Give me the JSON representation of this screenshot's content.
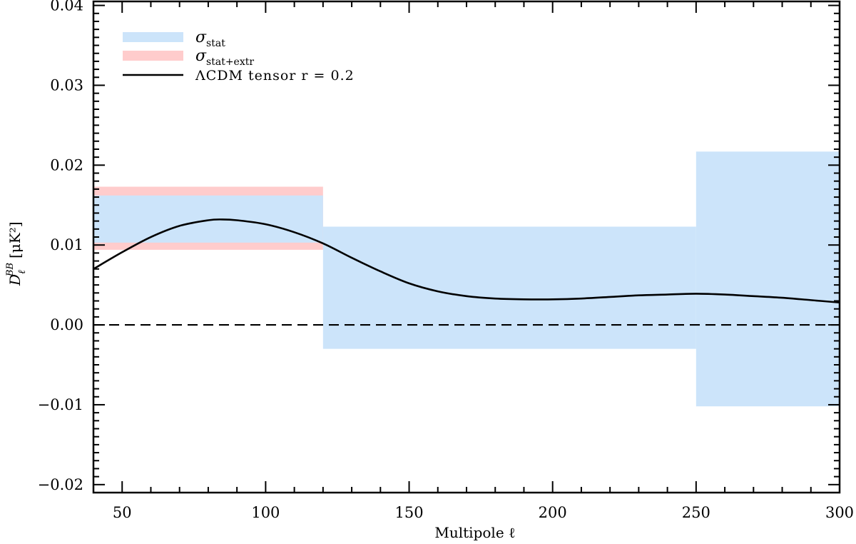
{
  "chart_data": {
    "type": "area",
    "xlabel": "Multipole ℓ",
    "ylabel": "D_ℓ^BB [μK²]",
    "xlim": [
      40,
      300
    ],
    "ylim": [
      -0.021,
      0.0405
    ],
    "x_ticks": [
      50,
      100,
      150,
      200,
      250,
      300
    ],
    "x_tick_labels": [
      "50",
      "100",
      "150",
      "200",
      "250",
      "300"
    ],
    "y_ticks": [
      -0.02,
      -0.01,
      0.0,
      0.01,
      0.02,
      0.03,
      0.04
    ],
    "y_tick_labels": [
      "−0.02",
      "−0.01",
      "0.00",
      "0.01",
      "0.02",
      "0.03",
      "0.04"
    ],
    "legend_position": "top-left",
    "series": [
      {
        "name": "σ_stat+extr",
        "kind": "band",
        "color": "#ffcccc",
        "bins": [
          {
            "x0": 40,
            "x1": 120,
            "low": 0.0094,
            "high": 0.0173
          }
        ]
      },
      {
        "name": "σ_stat",
        "kind": "band",
        "color": "#cce4fa",
        "bins": [
          {
            "x0": 40,
            "x1": 120,
            "low": 0.0103,
            "high": 0.0162
          },
          {
            "x0": 120,
            "x1": 250,
            "low": -0.003,
            "high": 0.0123
          },
          {
            "x0": 250,
            "x1": 300,
            "low": -0.0102,
            "high": 0.0217
          }
        ]
      },
      {
        "name": "ΛCDM tensor r = 0.2",
        "kind": "line",
        "color": "#000000",
        "x": [
          40,
          50,
          60,
          70,
          80,
          85,
          90,
          100,
          110,
          120,
          130,
          140,
          150,
          160,
          170,
          180,
          190,
          200,
          210,
          220,
          230,
          240,
          250,
          260,
          270,
          280,
          290,
          300
        ],
        "y": [
          0.007,
          0.0091,
          0.011,
          0.0124,
          0.0131,
          0.0132,
          0.0131,
          0.0126,
          0.0116,
          0.0102,
          0.0084,
          0.0067,
          0.0052,
          0.0042,
          0.0036,
          0.0033,
          0.0032,
          0.0032,
          0.0033,
          0.0035,
          0.0037,
          0.0038,
          0.0039,
          0.0038,
          0.0036,
          0.0034,
          0.0031,
          0.0028
        ]
      }
    ],
    "reference_line": {
      "y": 0.0,
      "style": "dashed",
      "color": "#000000"
    }
  }
}
